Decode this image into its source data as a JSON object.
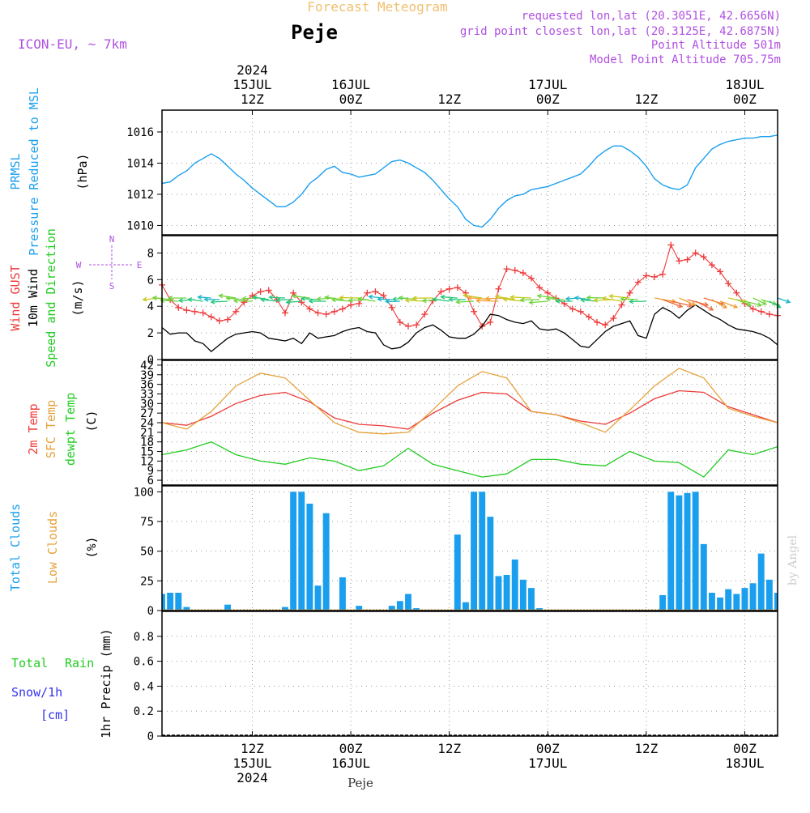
{
  "header": {
    "product_title": "Forecast Meteogram",
    "location": "Peje",
    "model": "ICON-EU, ~ 7km",
    "requested": "requested lon,lat (20.3051E, 42.6656N)",
    "grid_point": "grid point closest lon,lat (20.3125E, 42.6875N)",
    "point_altitude": "Point Altitude 501m",
    "model_altitude": "Model Point Altitude 705.75m",
    "credit": "by Angel",
    "bottom_label": "Peje"
  },
  "time_axis": {
    "start_hour": 0,
    "end_hour": 75,
    "top_ticks": [
      {
        "hour": 11,
        "lines": [
          "2024",
          "15JUL",
          "12Z"
        ]
      },
      {
        "hour": 23,
        "lines": [
          "16JUL",
          "00Z"
        ]
      },
      {
        "hour": 35,
        "lines": [
          "12Z"
        ]
      },
      {
        "hour": 47,
        "lines": [
          "17JUL",
          "00Z"
        ]
      },
      {
        "hour": 59,
        "lines": [
          "12Z"
        ]
      },
      {
        "hour": 71,
        "lines": [
          "18JUL",
          "00Z"
        ]
      }
    ],
    "bottom_ticks": [
      {
        "hour": 11,
        "lines": [
          "12Z",
          "15JUL",
          "2024"
        ]
      },
      {
        "hour": 23,
        "lines": [
          "00Z",
          "16JUL"
        ]
      },
      {
        "hour": 35,
        "lines": [
          "12Z"
        ]
      },
      {
        "hour": 47,
        "lines": [
          "00Z",
          "17JUL"
        ]
      },
      {
        "hour": 59,
        "lines": [
          "12Z"
        ]
      },
      {
        "hour": 71,
        "lines": [
          "00Z",
          "18JUL"
        ]
      }
    ]
  },
  "colors": {
    "pressure": "#1a9fef",
    "gust": "#ee3a3a",
    "wind": "#000000",
    "temp": "#ee3a3a",
    "sfc_temp": "#e6a23c",
    "dewpoint": "#22cc22",
    "total_clouds": "#1a9fef",
    "low_clouds": "#e6a23c",
    "header_purple": "#b050e0",
    "header_orange": "#f0c070",
    "snow_blue": "#3333ee",
    "rain_green": "#22cc22"
  },
  "chart_data": [
    {
      "type": "line",
      "id": "pressure",
      "labels": [
        "PRMSL",
        "Pressure Reduced to MSL"
      ],
      "unit": "(hPa)",
      "ylim": [
        1009.4,
        1017.4
      ],
      "yticks": [
        1010,
        1012,
        1014,
        1016
      ],
      "grid": true,
      "series": [
        {
          "name": "PRMSL",
          "x": [
            0,
            1,
            2,
            3,
            4,
            5,
            6,
            7,
            8,
            9,
            10,
            11,
            12,
            13,
            14,
            15,
            16,
            17,
            18,
            19,
            20,
            21,
            22,
            23,
            24,
            25,
            26,
            27,
            28,
            29,
            30,
            31,
            32,
            33,
            34,
            35,
            36,
            37,
            38,
            39,
            40,
            41,
            42,
            43,
            44,
            45,
            46,
            47,
            48,
            49,
            50,
            51,
            52,
            53,
            54,
            55,
            56,
            57,
            58,
            59,
            60,
            61,
            62,
            63,
            64,
            65,
            66,
            67,
            68,
            69,
            70,
            71,
            72,
            73,
            74,
            75
          ],
          "values": [
            1012.7,
            1012.8,
            1013.2,
            1013.5,
            1014.0,
            1014.3,
            1014.6,
            1014.3,
            1013.8,
            1013.3,
            1012.9,
            1012.4,
            1012.0,
            1011.6,
            1011.2,
            1011.2,
            1011.5,
            1012.0,
            1012.7,
            1013.1,
            1013.6,
            1013.8,
            1013.4,
            1013.3,
            1013.1,
            1013.2,
            1013.3,
            1013.7,
            1014.1,
            1014.2,
            1014.0,
            1013.7,
            1013.4,
            1012.9,
            1012.3,
            1011.7,
            1011.2,
            1010.4,
            1010.0,
            1009.9,
            1010.4,
            1011.1,
            1011.6,
            1011.9,
            1012.0,
            1012.3,
            1012.4,
            1012.5,
            1012.7,
            1012.9,
            1013.1,
            1013.3,
            1013.8,
            1014.4,
            1014.8,
            1015.1,
            1015.1,
            1014.8,
            1014.4,
            1013.8,
            1013.0,
            1012.6,
            1012.4,
            1012.3,
            1012.6,
            1013.7,
            1014.3,
            1014.9,
            1015.2,
            1015.4,
            1015.5,
            1015.6,
            1015.6,
            1015.7,
            1015.7,
            1015.8
          ]
        }
      ]
    },
    {
      "type": "line",
      "id": "wind",
      "labels": [
        "Wind GUST",
        "10m Wind",
        "Speed and Direction"
      ],
      "unit": "(m/s)",
      "compass": {
        "n": "N",
        "s": "S",
        "w": "W",
        "e": "E"
      },
      "ylim": [
        0,
        9.3
      ],
      "yticks": [
        0,
        2,
        4,
        6,
        8
      ],
      "grid": true,
      "series": [
        {
          "name": "Wind GUST",
          "marker": "+",
          "x": [
            0,
            1,
            2,
            3,
            4,
            5,
            6,
            7,
            8,
            9,
            10,
            11,
            12,
            13,
            14,
            15,
            16,
            17,
            18,
            19,
            20,
            21,
            22,
            23,
            24,
            25,
            26,
            27,
            28,
            29,
            30,
            31,
            32,
            33,
            34,
            35,
            36,
            37,
            38,
            39,
            40,
            41,
            42,
            43,
            44,
            45,
            46,
            47,
            48,
            49,
            50,
            51,
            52,
            53,
            54,
            55,
            56,
            57,
            58,
            59,
            60,
            61,
            62,
            63,
            64,
            65,
            66,
            67,
            68,
            69,
            70,
            71,
            72,
            73,
            74,
            75
          ],
          "values": [
            5.6,
            4.5,
            3.9,
            3.7,
            3.6,
            3.5,
            3.2,
            2.9,
            3.0,
            3.6,
            4.3,
            4.8,
            5.1,
            5.2,
            4.5,
            3.5,
            5.0,
            4.3,
            3.8,
            3.5,
            3.4,
            3.6,
            3.8,
            4.1,
            4.2,
            5.0,
            5.1,
            4.8,
            3.9,
            2.8,
            2.5,
            2.6,
            3.4,
            4.4,
            5.1,
            5.3,
            5.4,
            5.0,
            3.6,
            2.5,
            2.8,
            5.3,
            6.8,
            6.7,
            6.5,
            6.1,
            5.4,
            5.0,
            4.6,
            4.2,
            3.8,
            3.6,
            3.2,
            2.8,
            2.6,
            3.1,
            4.1,
            5.0,
            5.8,
            6.3,
            6.2,
            6.4,
            8.6,
            7.4,
            7.5,
            8.0,
            7.7,
            7.1,
            6.6,
            5.7,
            5.0,
            4.2,
            3.8,
            3.6,
            3.4,
            3.3
          ]
        },
        {
          "name": "10m Wind",
          "x": [
            0,
            1,
            2,
            3,
            4,
            5,
            6,
            7,
            8,
            9,
            10,
            11,
            12,
            13,
            14,
            15,
            16,
            17,
            18,
            19,
            20,
            21,
            22,
            23,
            24,
            25,
            26,
            27,
            28,
            29,
            30,
            31,
            32,
            33,
            34,
            35,
            36,
            37,
            38,
            39,
            40,
            41,
            42,
            43,
            44,
            45,
            46,
            47,
            48,
            49,
            50,
            51,
            52,
            53,
            54,
            55,
            56,
            57,
            58,
            59,
            60,
            61,
            62,
            63,
            64,
            65,
            66,
            67,
            68,
            69,
            70,
            71,
            72,
            73,
            74,
            75
          ],
          "values": [
            2.4,
            1.9,
            2.0,
            2.0,
            1.4,
            1.2,
            0.6,
            1.1,
            1.6,
            1.9,
            2.0,
            2.1,
            2.0,
            1.6,
            1.5,
            1.4,
            1.6,
            1.2,
            2.0,
            1.6,
            1.7,
            1.8,
            2.1,
            2.3,
            2.4,
            2.1,
            2.0,
            1.1,
            0.8,
            0.9,
            1.3,
            2.0,
            2.4,
            2.6,
            2.2,
            1.7,
            1.6,
            1.6,
            1.9,
            2.5,
            3.4,
            3.3,
            3.0,
            2.8,
            2.7,
            2.9,
            2.3,
            2.2,
            2.3,
            2.0,
            1.5,
            1.0,
            0.9,
            1.5,
            2.1,
            2.5,
            2.7,
            2.9,
            1.8,
            1.6,
            3.4,
            3.9,
            3.6,
            3.1,
            3.7,
            4.1,
            3.7,
            3.3,
            3.0,
            2.6,
            2.3,
            2.2,
            2.1,
            1.9,
            1.6,
            1.1
          ]
        }
      ]
    },
    {
      "type": "line",
      "id": "temperature",
      "labels": [
        "2m Temp",
        "SFC Temp",
        "dewpt Temp"
      ],
      "unit": "(C)",
      "ylim": [
        4.5,
        43.5
      ],
      "yticks": [
        6,
        9,
        12,
        15,
        18,
        21,
        24,
        27,
        30,
        33,
        36,
        39,
        42
      ],
      "grid": true,
      "series": [
        {
          "name": "2m Temp",
          "x": [
            0,
            3,
            6,
            9,
            12,
            15,
            18,
            21,
            24,
            27,
            30,
            33,
            36,
            39,
            42,
            45,
            48,
            51,
            54,
            57,
            60,
            63,
            66,
            69,
            72,
            75
          ],
          "values": [
            24.0,
            23.2,
            26.0,
            30.0,
            32.5,
            33.5,
            30.5,
            25.5,
            23.5,
            23.0,
            22.0,
            27.0,
            31.0,
            33.5,
            33.0,
            27.5,
            26.5,
            24.5,
            23.5,
            27.0,
            31.5,
            34.0,
            33.5,
            29.0,
            26.5,
            24.0
          ]
        },
        {
          "name": "SFC Temp",
          "x": [
            0,
            3,
            6,
            9,
            12,
            15,
            18,
            21,
            24,
            27,
            30,
            33,
            36,
            39,
            42,
            45,
            48,
            51,
            54,
            57,
            60,
            63,
            66,
            69,
            72,
            75
          ],
          "values": [
            24.0,
            22.0,
            27.5,
            35.5,
            39.5,
            38.0,
            31.0,
            24.0,
            21.0,
            20.5,
            21.0,
            28.0,
            35.5,
            40.0,
            38.0,
            27.5,
            26.5,
            24.0,
            21.0,
            28.0,
            35.5,
            41.0,
            38.0,
            28.5,
            26.0,
            24.0
          ]
        },
        {
          "name": "dewpt Temp",
          "x": [
            0,
            3,
            6,
            9,
            12,
            15,
            18,
            21,
            24,
            27,
            30,
            33,
            36,
            39,
            42,
            45,
            48,
            51,
            54,
            57,
            60,
            63,
            66,
            69,
            72,
            75
          ],
          "values": [
            14.0,
            15.5,
            18.0,
            14.0,
            12.0,
            11.0,
            13.0,
            12.0,
            9.0,
            10.5,
            16.0,
            11.0,
            9.0,
            7.0,
            8.0,
            12.5,
            12.5,
            11.0,
            10.5,
            15.0,
            12.0,
            11.5,
            7.0,
            15.5,
            14.0,
            16.5
          ]
        }
      ]
    },
    {
      "type": "bar",
      "id": "clouds",
      "labels": [
        "Total Clouds",
        "Low Clouds"
      ],
      "unit": "(%)",
      "ylim": [
        0,
        105
      ],
      "yticks": [
        0,
        25,
        50,
        75,
        100
      ],
      "grid": true,
      "series": [
        {
          "name": "Total Clouds",
          "x": [
            0,
            1,
            2,
            3,
            8,
            15,
            16,
            17,
            18,
            19,
            20,
            22,
            24,
            28,
            29,
            30,
            31,
            36,
            37,
            38,
            39,
            40,
            41,
            42,
            43,
            44,
            45,
            46,
            61,
            62,
            63,
            64,
            65,
            66,
            67,
            68,
            69,
            70,
            71,
            72,
            73,
            74,
            75
          ],
          "values": [
            14,
            15,
            15,
            3,
            5,
            3,
            100,
            100,
            90,
            21,
            82,
            28,
            4,
            4,
            8,
            14,
            2,
            64,
            7,
            100,
            100,
            79,
            29,
            30,
            43,
            26,
            19,
            2,
            13,
            100,
            97,
            99,
            100,
            56,
            15,
            11,
            18,
            14,
            19,
            23,
            48,
            26,
            15
          ]
        }
      ]
    },
    {
      "type": "bar",
      "id": "precip",
      "labels": [
        "Total",
        "Rain",
        "Snow/1h",
        "[cm]"
      ],
      "unit": "1hr Precip (mm)",
      "ylim": [
        0,
        1.0
      ],
      "yticks": [
        0,
        0.2,
        0.4,
        0.6,
        0.8
      ],
      "ytick_labels": [
        "0",
        "0.2",
        "0.4",
        "0.6",
        "0.8"
      ],
      "grid": true,
      "series": []
    }
  ]
}
